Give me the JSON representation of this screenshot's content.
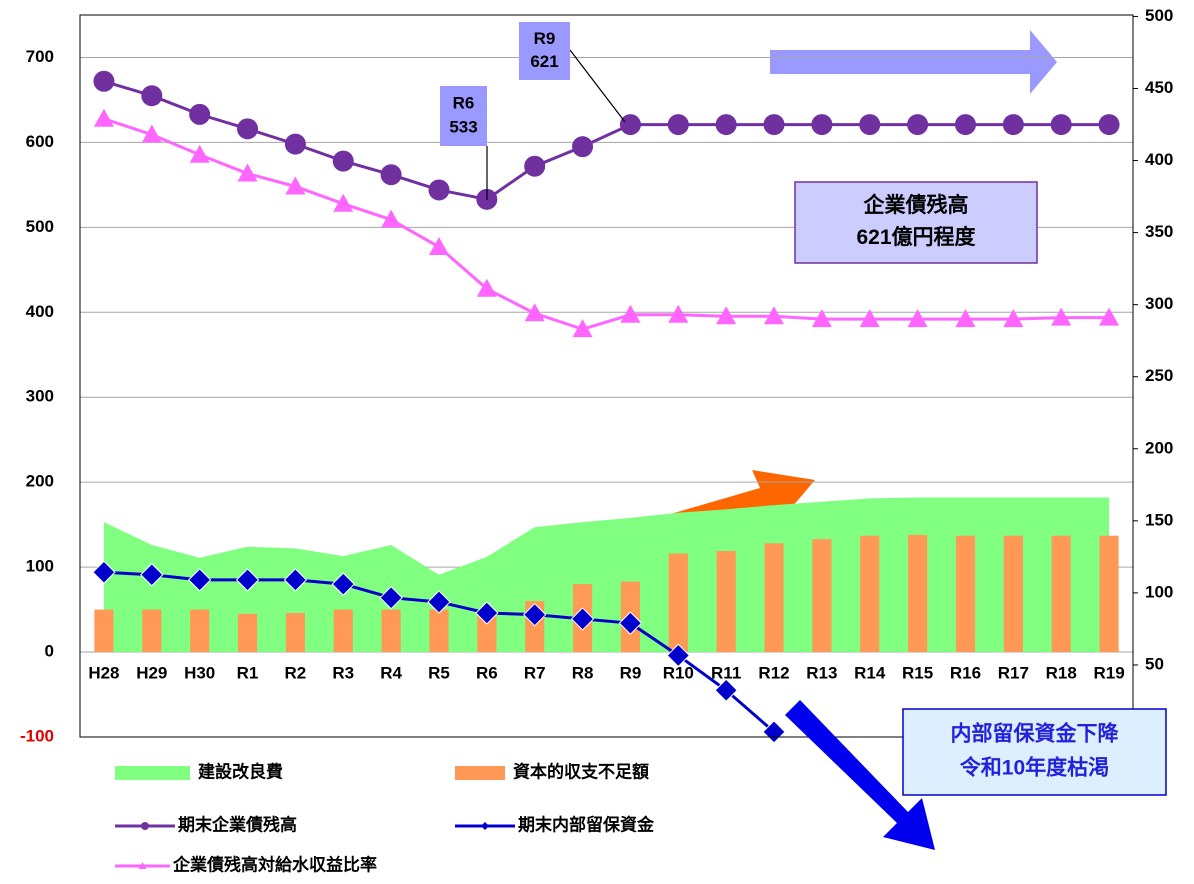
{
  "chart_data": {
    "type": "combo",
    "categories": [
      "H28",
      "H29",
      "H30",
      "R1",
      "R2",
      "R3",
      "R4",
      "R5",
      "R6",
      "R7",
      "R8",
      "R9",
      "R10",
      "R11",
      "R12",
      "R13",
      "R14",
      "R15",
      "R16",
      "R17",
      "R18",
      "R19"
    ],
    "series": [
      {
        "name": "建設改良費",
        "type": "area",
        "color": "#80ff80",
        "values": [
          153,
          126,
          111,
          124,
          122,
          113,
          126,
          91,
          112,
          147,
          153,
          158,
          164,
          168,
          173,
          177,
          181,
          182,
          182,
          182,
          182,
          182
        ]
      },
      {
        "name": "資本的収支不足額",
        "type": "bar",
        "color": "#ff9955",
        "values": [
          50,
          50,
          50,
          45,
          46,
          50,
          50,
          50,
          50,
          60,
          80,
          83,
          116,
          119,
          128,
          133,
          137,
          138,
          137,
          137,
          137,
          137
        ]
      },
      {
        "name": "期末企業債残高",
        "type": "line",
        "marker": "circle",
        "color": "#7030a0",
        "values": [
          672,
          655,
          633,
          616,
          598,
          578,
          562,
          544,
          533,
          572,
          595,
          621,
          621,
          621,
          621,
          621,
          621,
          621,
          621,
          621,
          621,
          621
        ]
      },
      {
        "name": "期末内部留保資金",
        "type": "line",
        "marker": "diamond",
        "color": "#0000cc",
        "values": [
          94,
          91,
          85,
          85,
          85,
          80,
          64,
          59,
          46,
          44,
          39,
          34,
          -4,
          -45,
          -94,
          null,
          null,
          null,
          null,
          null,
          null,
          null
        ]
      },
      {
        "name": "企業債残高対給水収益比率",
        "type": "line",
        "marker": "triangle",
        "color": "#ff66ff",
        "axis": "y2",
        "values": [
          429,
          418,
          404,
          391,
          382,
          370,
          359,
          340,
          311,
          294,
          283,
          293,
          293,
          292,
          292,
          290,
          290,
          290,
          290,
          290,
          291,
          291
        ]
      }
    ],
    "ylim": [
      -100,
      750
    ],
    "yticks": [
      -100,
      0,
      100,
      200,
      300,
      400,
      500,
      600,
      700
    ],
    "y2lim": [
      0,
      501
    ],
    "y2ticks": [
      50,
      100,
      150,
      200,
      250,
      300,
      350,
      400,
      450,
      500
    ],
    "grid": true,
    "annotations": [
      {
        "text": [
          "R6",
          "533"
        ]
      },
      {
        "text": [
          "R9",
          "621"
        ]
      },
      {
        "text": [
          "企業債残高",
          "621億円程度"
        ]
      },
      {
        "text": [
          "内部留保資金下降",
          "令和10年度枯渇"
        ]
      }
    ]
  }
}
